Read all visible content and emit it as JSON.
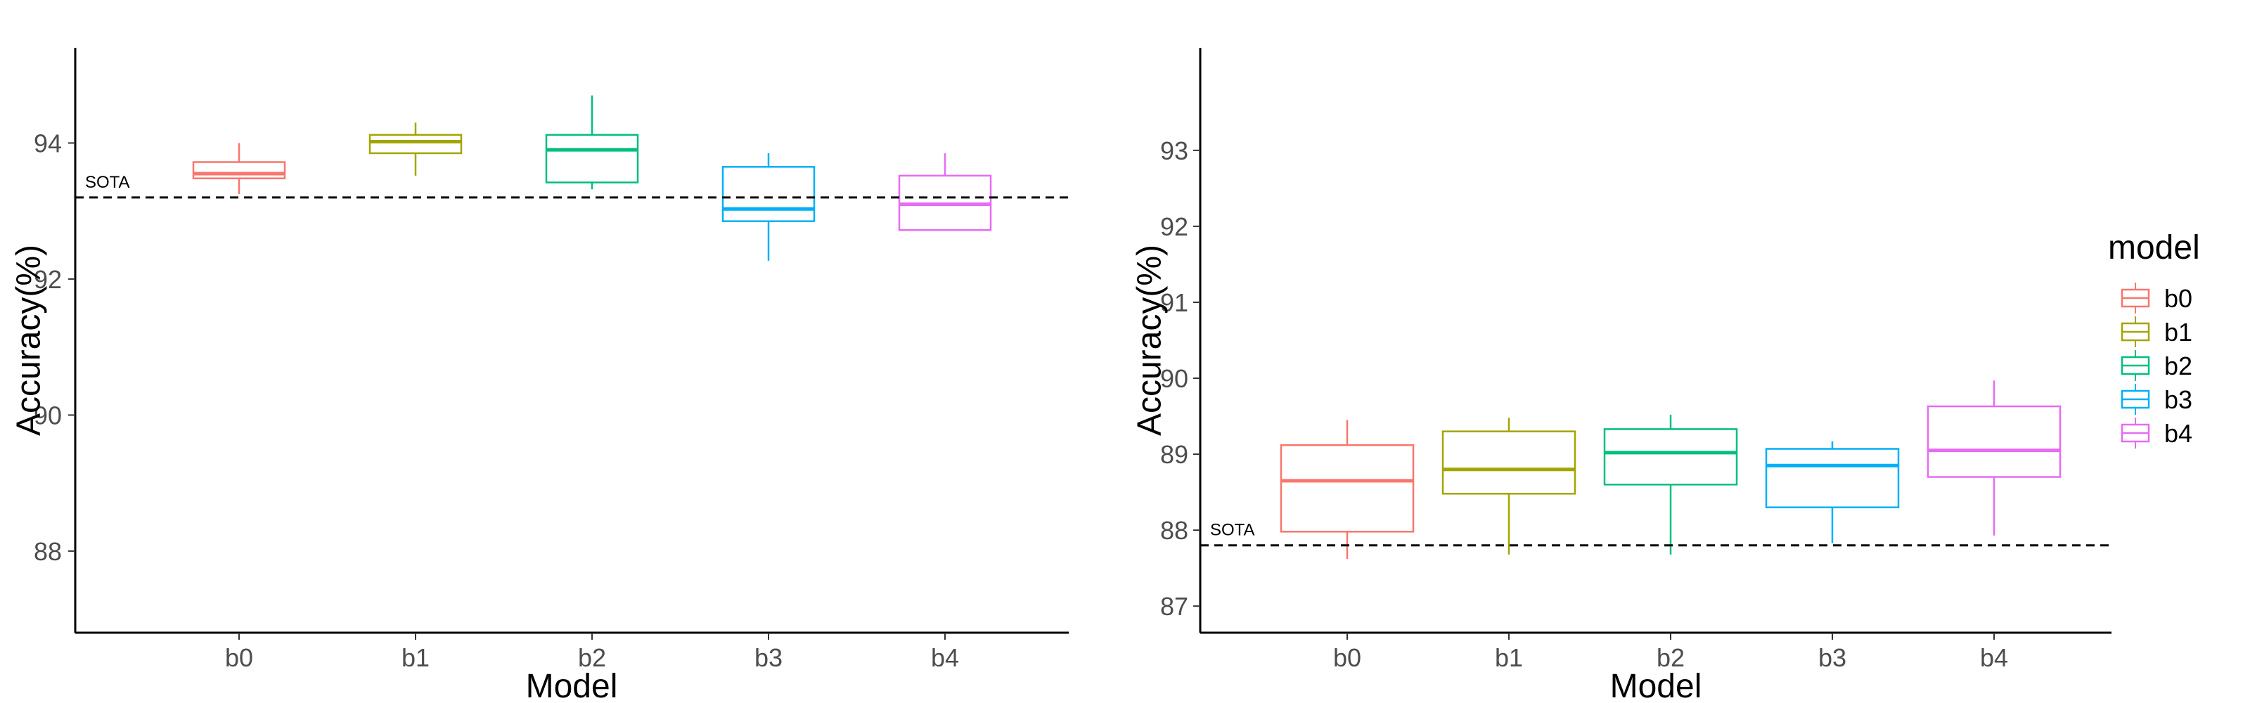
{
  "chart_data": [
    {
      "type": "box",
      "xlabel": "Model",
      "ylabel": "Accuracy(%)",
      "ylim": [
        86.8,
        95.4
      ],
      "yticks": [
        88,
        90,
        92,
        94
      ],
      "categories": [
        "b0",
        "b1",
        "b2",
        "b3",
        "b4"
      ],
      "boxes": [
        {
          "category": "b0",
          "min": 93.25,
          "q1": 93.48,
          "median": 93.55,
          "q3": 93.72,
          "max": 94.0
        },
        {
          "category": "b1",
          "min": 93.52,
          "q1": 93.85,
          "median": 94.02,
          "q3": 94.12,
          "max": 94.3
        },
        {
          "category": "b2",
          "min": 93.32,
          "q1": 93.42,
          "median": 93.9,
          "q3": 94.12,
          "max": 94.7
        },
        {
          "category": "b3",
          "min": 92.27,
          "q1": 92.85,
          "median": 93.03,
          "q3": 93.65,
          "max": 93.85
        },
        {
          "category": "b4",
          "min": 92.72,
          "q1": 92.72,
          "median": 93.1,
          "q3": 93.52,
          "max": 93.85
        }
      ],
      "reference_line": {
        "label": "SOTA",
        "value": 93.2
      }
    },
    {
      "type": "box",
      "xlabel": "Model",
      "ylabel": "Accuracy(%)",
      "ylim": [
        86.65,
        94.35
      ],
      "yticks": [
        87,
        88,
        89,
        90,
        91,
        92,
        93
      ],
      "categories": [
        "b0",
        "b1",
        "b2",
        "b3",
        "b4"
      ],
      "boxes": [
        {
          "category": "b0",
          "min": 87.62,
          "q1": 87.98,
          "median": 88.65,
          "q3": 89.12,
          "max": 89.45
        },
        {
          "category": "b1",
          "min": 87.68,
          "q1": 88.48,
          "median": 88.8,
          "q3": 89.3,
          "max": 89.48
        },
        {
          "category": "b2",
          "min": 87.68,
          "q1": 88.6,
          "median": 89.02,
          "q3": 89.33,
          "max": 89.52
        },
        {
          "category": "b3",
          "min": 87.83,
          "q1": 88.3,
          "median": 88.85,
          "q3": 89.07,
          "max": 89.17
        },
        {
          "category": "b4",
          "min": 87.93,
          "q1": 88.7,
          "median": 89.05,
          "q3": 89.63,
          "max": 89.97
        }
      ],
      "reference_line": {
        "label": "SOTA",
        "value": 87.8
      }
    }
  ],
  "legend": {
    "title": "model",
    "placement": "right",
    "items": [
      {
        "label": "b0",
        "color": "#F8766D"
      },
      {
        "label": "b1",
        "color": "#A3A500"
      },
      {
        "label": "b2",
        "color": "#00BF7D"
      },
      {
        "label": "b3",
        "color": "#00B0F6"
      },
      {
        "label": "b4",
        "color": "#E76BF3"
      }
    ]
  }
}
